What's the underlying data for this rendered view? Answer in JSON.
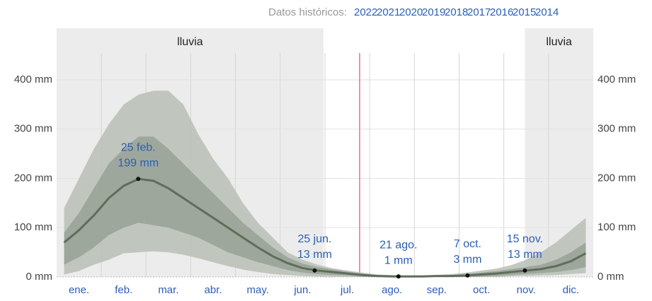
{
  "header": {
    "label": "Datos históricos:",
    "years": [
      "2022",
      "2021",
      "2020",
      "2019",
      "2018",
      "2017",
      "2016",
      "2015",
      "2014"
    ]
  },
  "chart_data": {
    "type": "line",
    "categories": [
      null,
      "ene.",
      null,
      null,
      "feb.",
      null,
      null,
      "mar.",
      null,
      null,
      "abr.",
      null,
      null,
      "may.",
      null,
      null,
      "jun.",
      null,
      null,
      "jul.",
      null,
      null,
      "ago.",
      null,
      null,
      "sep.",
      null,
      null,
      "oct.",
      null,
      null,
      "nov.",
      null,
      null,
      "dic.",
      null
    ],
    "ylim": [
      0,
      400
    ],
    "yticks": [
      {
        "value": 0,
        "label": "0 mm"
      },
      {
        "value": 100,
        "label": "100 mm"
      },
      {
        "value": 200,
        "label": "200 mm"
      },
      {
        "value": 300,
        "label": "300 mm"
      },
      {
        "value": 400,
        "label": "400 mm"
      }
    ],
    "grid": true,
    "rain_seasons": [
      {
        "label": "lluvia"
      },
      {
        "label": "lluvia"
      }
    ],
    "bands": [
      {
        "color": "#b9c0b6",
        "low": [
          5,
          12,
          25,
          35,
          48,
          50,
          52,
          50,
          45,
          38,
          30,
          22,
          15,
          10,
          6,
          4,
          2,
          1,
          0,
          0,
          0,
          0,
          0,
          0,
          0,
          0,
          0,
          0,
          0,
          0,
          1,
          2,
          3,
          4,
          6,
          8
        ],
        "high": [
          140,
          200,
          260,
          310,
          350,
          370,
          378,
          378,
          350,
          290,
          240,
          200,
          150,
          110,
          80,
          50,
          35,
          25,
          18,
          13,
          9,
          5,
          4,
          3,
          3,
          4,
          6,
          9,
          13,
          17,
          24,
          35,
          50,
          70,
          95,
          120
        ]
      },
      {
        "color": "#98a195",
        "low": [
          25,
          40,
          60,
          85,
          100,
          110,
          105,
          100,
          90,
          80,
          65,
          50,
          40,
          30,
          22,
          14,
          9,
          6,
          4,
          3,
          1,
          0,
          0,
          0,
          0,
          0,
          0,
          0,
          1,
          2,
          4,
          6,
          8,
          10,
          14,
          20
        ],
        "high": [
          90,
          130,
          180,
          230,
          260,
          285,
          285,
          260,
          230,
          200,
          170,
          140,
          110,
          85,
          60,
          40,
          27,
          20,
          15,
          11,
          7,
          4,
          3,
          2,
          2,
          3,
          4,
          6,
          9,
          12,
          16,
          20,
          25,
          35,
          50,
          70
        ]
      }
    ],
    "series": [
      {
        "color": "#5f6d5b",
        "values": [
          70,
          95,
          125,
          160,
          185,
          199,
          195,
          180,
          160,
          140,
          120,
          100,
          80,
          60,
          42,
          28,
          18,
          13,
          10,
          7,
          4,
          2,
          1,
          1,
          1,
          2,
          2,
          3,
          5,
          7,
          10,
          13,
          16,
          22,
          32,
          48
        ]
      }
    ],
    "annotations": [
      {
        "date": "25 feb.",
        "value": 199,
        "value_label": "199 mm"
      },
      {
        "date": "25 jun.",
        "value": 13,
        "value_label": "13 mm"
      },
      {
        "date": "21 ago.",
        "value": 1,
        "value_label": "1 mm"
      },
      {
        "date": "7 oct.",
        "value": 3,
        "value_label": "3 mm"
      },
      {
        "date": "15 nov.",
        "value": 13,
        "value_label": "13 mm"
      }
    ]
  }
}
